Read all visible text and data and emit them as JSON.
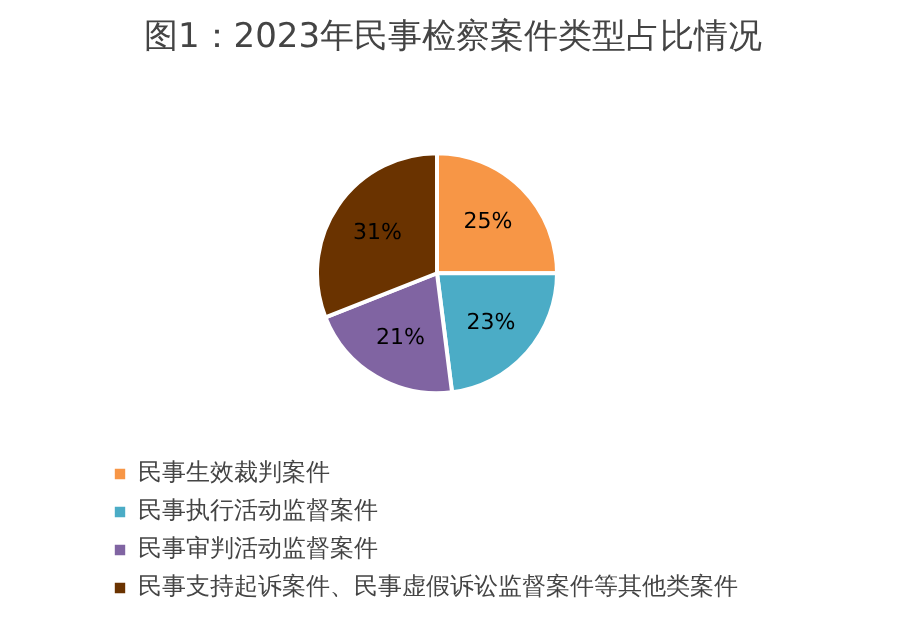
{
  "chart_data": {
    "type": "pie",
    "title": "图1：2023年民事检察案件类型占比情况",
    "categories": [
      "民事生效裁判案件",
      "民事执行活动监督案件",
      "民事审判活动监督案件",
      "民事支持起诉案件、民事虚假诉讼监督案件等其他类案件"
    ],
    "values": [
      25,
      23,
      21,
      31
    ],
    "value_labels": [
      "25%",
      "23%",
      "21%",
      "31%"
    ],
    "colors": [
      "#f79646",
      "#4bacc6",
      "#8064a2",
      "#6a3300"
    ],
    "legend": "bottom"
  }
}
